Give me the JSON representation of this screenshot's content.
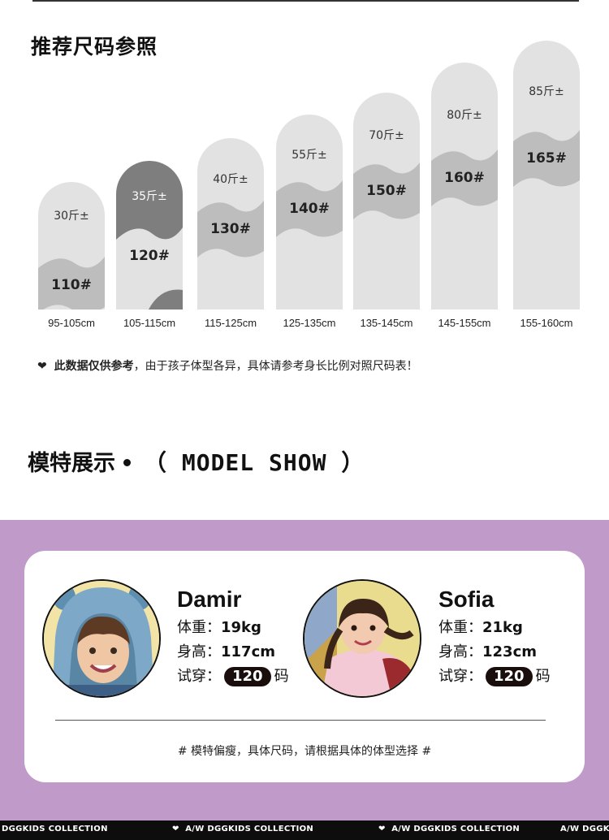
{
  "size_section": {
    "title": "推荐尺码参照",
    "columns": [
      {
        "weight": "30斤±",
        "size": "110#",
        "height": "95-105cm",
        "highlight": false
      },
      {
        "weight": "35斤±",
        "size": "120#",
        "height": "105-115cm",
        "highlight": true
      },
      {
        "weight": "40斤±",
        "size": "130#",
        "height": "115-125cm",
        "highlight": false
      },
      {
        "weight": "55斤±",
        "size": "140#",
        "height": "125-135cm",
        "highlight": false
      },
      {
        "weight": "70斤±",
        "size": "150#",
        "height": "135-145cm",
        "highlight": false
      },
      {
        "weight": "80斤±",
        "size": "160#",
        "height": "145-155cm",
        "highlight": false
      },
      {
        "weight": "85斤±",
        "size": "165#",
        "height": "155-160cm",
        "highlight": false
      }
    ],
    "note_bold": "此数据仅供参考",
    "note_rest": "，由于孩子体型各异，具体请参考身长比例对照尺码表！"
  },
  "model_section": {
    "title_cn": "模特展示",
    "title_en": "（ MODEL SHOW ）",
    "models": [
      {
        "name": "Damir",
        "weight_label": "体重：",
        "weight": "19kg",
        "height_label": "身高：",
        "height": "117cm",
        "try_label": "试穿：",
        "size": "120",
        "size_suffix": "码"
      },
      {
        "name": "Sofia",
        "weight_label": "体重：",
        "weight": "21kg",
        "height_label": "身高：",
        "height": "123cm",
        "try_label": "试穿：",
        "size": "120",
        "size_suffix": "码"
      }
    ],
    "bottom_note": "# 模特偏瘦，具体尺码，请根据具体的体型选择 #"
  },
  "footer": {
    "items": [
      "DGGKIDS COLLECTION",
      "A/W DGGKIDS COLLECTION",
      "A/W DGGKIDS COLLECTION",
      "A/W DGGKIDS"
    ]
  },
  "colors": {
    "purple": "#c09ac8",
    "light_gray": "#e2e2e2",
    "mid_gray": "#bdbdbd",
    "dark_gray": "#7e7e7e",
    "pill": "#1a0e0c"
  }
}
